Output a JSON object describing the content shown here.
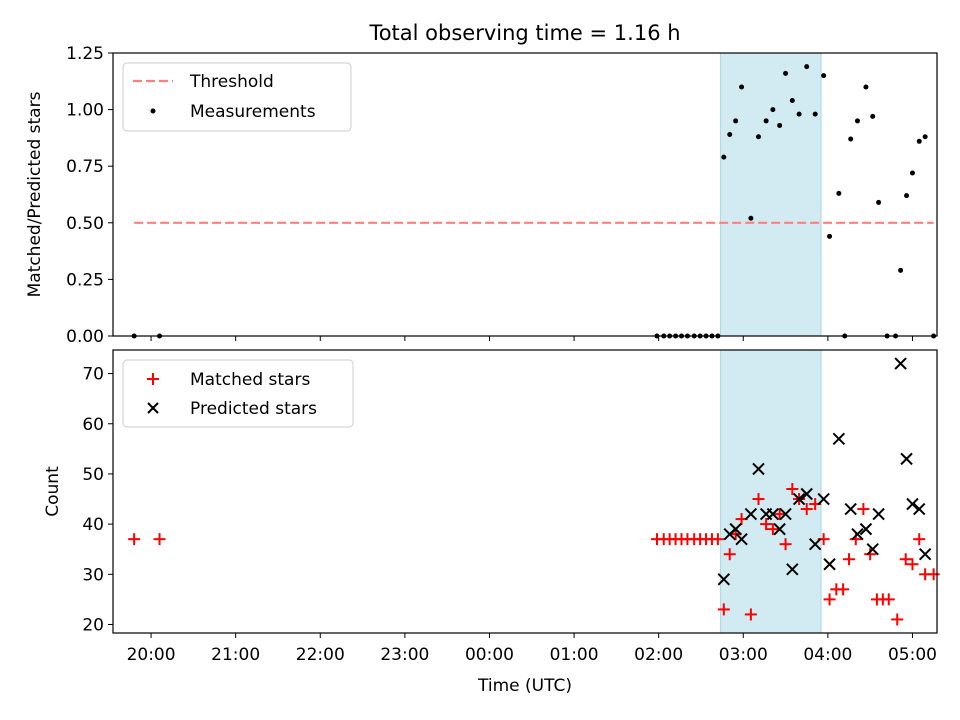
{
  "chart_data": [
    {
      "type": "scatter",
      "title": "Total observing time = 1.16 h",
      "xlabel": "",
      "ylabel": "Matched/Predicted stars",
      "ylim": [
        0,
        1.25
      ],
      "yticks": [
        "0.00",
        "0.25",
        "0.50",
        "0.75",
        "1.00",
        "1.25"
      ],
      "xlim": [
        -4.45,
        5.29
      ],
      "highlight_span": {
        "x": [
          2.73,
          3.92
        ],
        "color": "#add8e6"
      },
      "legend": {
        "placement": "top-left",
        "entries": [
          "Threshold",
          "Measurements"
        ]
      },
      "threshold": {
        "name": "Threshold",
        "x": [
          -4.2,
          5.25
        ],
        "y": 0.5,
        "color": "#ff7f7f",
        "style": "dashed"
      },
      "series": [
        {
          "name": "Measurements",
          "color": "#000000",
          "marker": "dot",
          "x": [
            -4.2,
            -3.9,
            1.98,
            2.06,
            2.13,
            2.2,
            2.27,
            2.34,
            2.42,
            2.49,
            2.56,
            2.63,
            2.7,
            2.77,
            2.84,
            2.91,
            2.98,
            3.09,
            3.18,
            3.27,
            3.35,
            3.43,
            3.5,
            3.58,
            3.66,
            3.75,
            3.85,
            3.95,
            4.02,
            4.13,
            4.2,
            4.27,
            4.35,
            4.45,
            4.53,
            4.6,
            4.7,
            4.8,
            4.86,
            4.93,
            5.0,
            5.08,
            5.15,
            5.25
          ],
          "y": [
            0.0,
            0.0,
            0.0,
            0.0,
            0.0,
            0.0,
            0.0,
            0.0,
            0.0,
            0.0,
            0.0,
            0.0,
            0.0,
            0.79,
            0.89,
            0.95,
            1.1,
            0.52,
            0.88,
            0.95,
            1.0,
            0.93,
            1.16,
            1.04,
            0.98,
            1.19,
            0.98,
            1.15,
            0.44,
            0.63,
            0.0,
            0.87,
            0.95,
            1.1,
            0.97,
            0.59,
            0.0,
            0.0,
            0.29,
            0.62,
            0.72,
            0.86,
            0.88,
            0.0
          ]
        }
      ]
    },
    {
      "type": "scatter",
      "title": "",
      "xlabel": "Time (UTC)",
      "ylabel": "Count",
      "ylim": [
        18.3,
        74.7
      ],
      "yticks": [
        "20",
        "30",
        "40",
        "50",
        "60",
        "70"
      ],
      "xlim": [
        -4.45,
        5.29
      ],
      "xticks": [
        "20:00",
        "21:00",
        "22:00",
        "23:00",
        "00:00",
        "01:00",
        "02:00",
        "03:00",
        "04:00",
        "05:00"
      ],
      "highlight_span": {
        "x": [
          2.73,
          3.92
        ],
        "color": "#add8e6"
      },
      "legend": {
        "placement": "top-left",
        "entries": [
          "Matched stars",
          "Predicted stars"
        ]
      },
      "series": [
        {
          "name": "Matched stars",
          "color": "#ff0000",
          "marker": "plus",
          "x": [
            -4.2,
            -3.9,
            1.98,
            2.06,
            2.13,
            2.2,
            2.27,
            2.34,
            2.42,
            2.49,
            2.56,
            2.63,
            2.7,
            2.77,
            2.84,
            2.91,
            2.98,
            3.09,
            3.18,
            3.27,
            3.35,
            3.43,
            3.5,
            3.58,
            3.66,
            3.75,
            3.85,
            3.95,
            4.02,
            4.1,
            4.18,
            4.25,
            4.33,
            4.42,
            4.5,
            4.58,
            4.65,
            4.72,
            4.82,
            4.92,
            5.0,
            5.08,
            5.15,
            5.25
          ],
          "y": [
            37,
            37,
            37,
            37,
            37,
            37,
            37,
            37,
            37,
            37,
            37,
            37,
            37,
            23,
            34,
            38,
            41,
            22,
            45,
            40,
            39,
            42,
            36,
            47,
            45,
            43,
            44,
            37,
            25,
            27,
            27,
            33,
            37,
            43,
            34,
            25,
            25,
            25,
            21,
            33,
            32,
            37,
            30,
            30
          ]
        },
        {
          "name": "Predicted stars",
          "color": "#000000",
          "marker": "x",
          "x": [
            2.77,
            2.84,
            2.91,
            2.98,
            3.09,
            3.18,
            3.27,
            3.35,
            3.43,
            3.5,
            3.58,
            3.66,
            3.75,
            3.85,
            3.95,
            4.02,
            4.13,
            4.27,
            4.35,
            4.45,
            4.53,
            4.6,
            4.86,
            4.93,
            5.0,
            5.08,
            5.15
          ],
          "y": [
            29,
            38,
            39,
            37,
            42,
            51,
            42,
            42,
            39,
            42,
            31,
            45,
            46,
            36,
            45,
            32,
            57,
            43,
            38,
            39,
            35,
            42,
            72,
            53,
            44,
            43,
            34
          ]
        }
      ]
    }
  ]
}
